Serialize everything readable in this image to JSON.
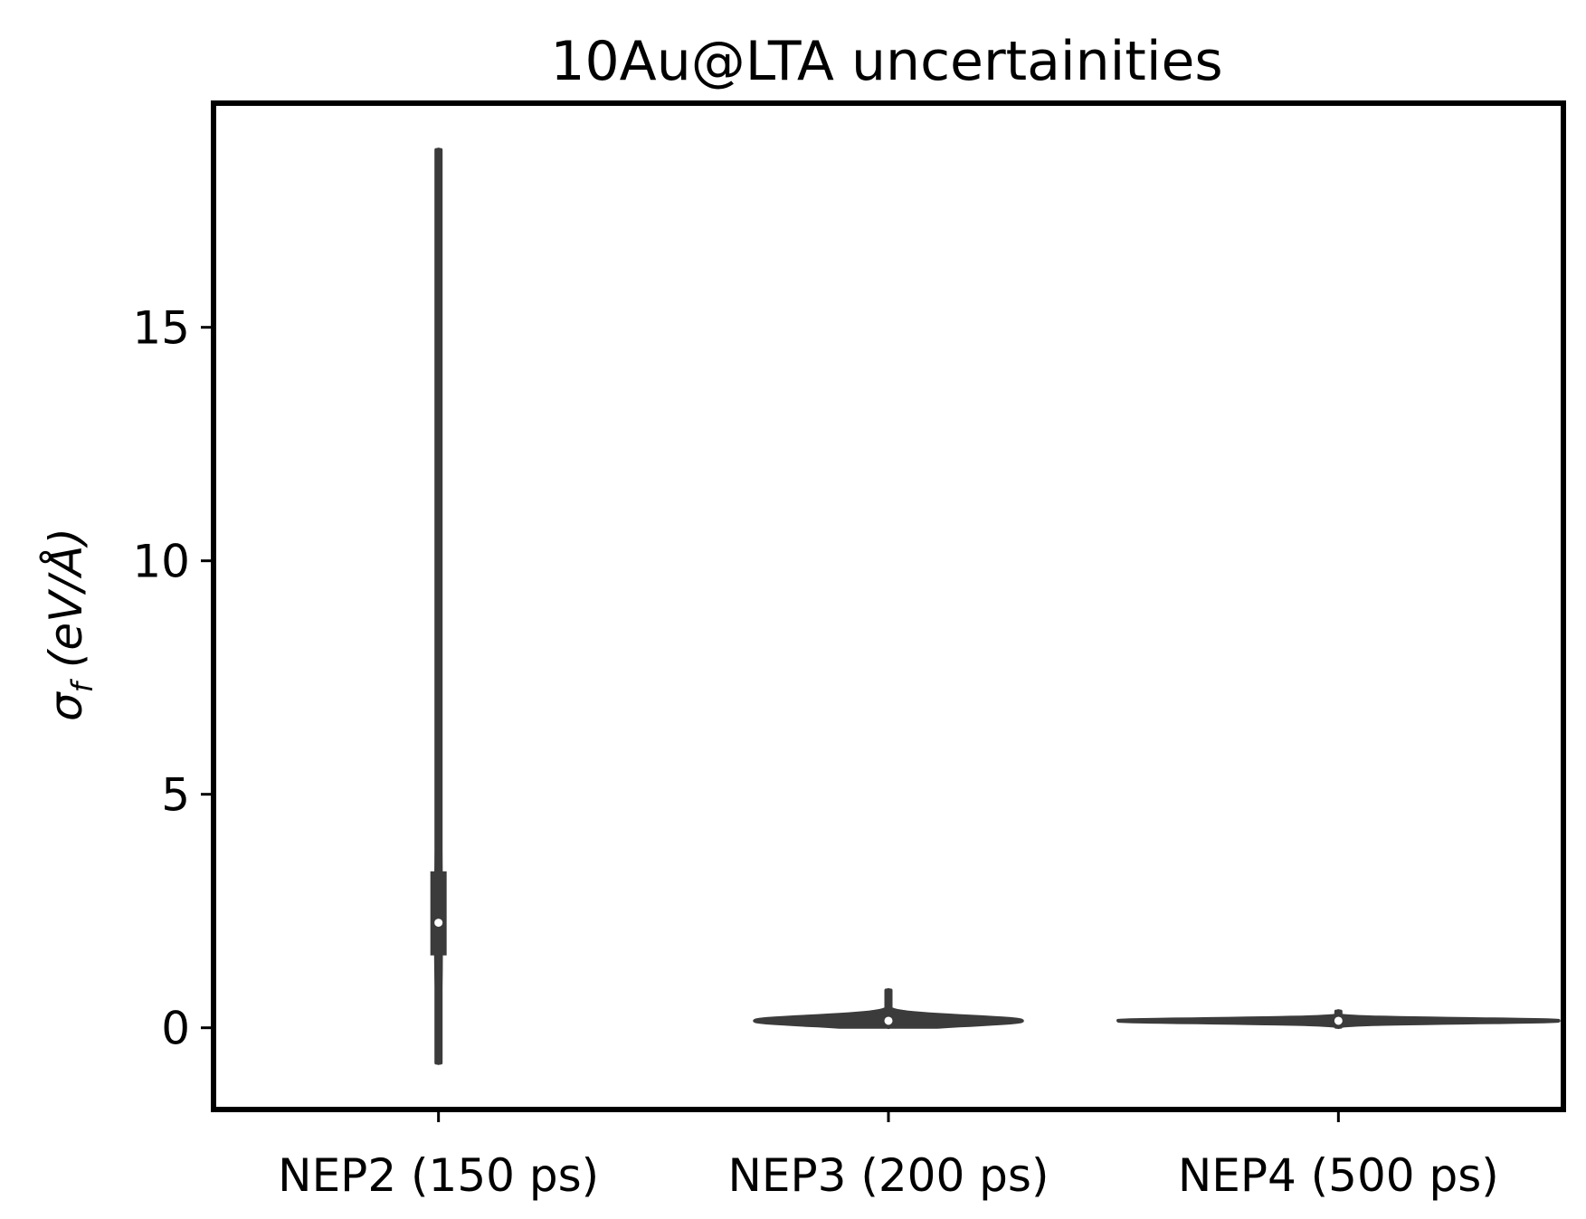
{
  "chart_data": {
    "type": "violin",
    "title": "10Au@LTA uncertainities",
    "xlabel": "",
    "ylabel": {
      "symbol": "σ",
      "subscript": "f",
      "units": "(eV/Å)"
    },
    "ylim": [
      -1.75,
      19.8
    ],
    "yticks": [
      0,
      5,
      10,
      15
    ],
    "grid": false,
    "categories": [
      "NEP2 (150 ps)",
      "NEP3 (200 ps)",
      "NEP4 (500 ps)"
    ],
    "violins": [
      {
        "category": "NEP2 (150 ps)",
        "min": -0.75,
        "max": 18.8,
        "q1": 1.55,
        "median": 2.25,
        "q3": 3.35,
        "relative_width": 0.02
      },
      {
        "category": "NEP3 (200 ps)",
        "min": 0.02,
        "max": 0.8,
        "q1": 0.05,
        "median": 0.15,
        "q3": 0.3,
        "relative_width": 1.0
      },
      {
        "category": "NEP4 (500 ps)",
        "min": 0.02,
        "max": 0.35,
        "q1": 0.05,
        "median": 0.15,
        "q3": 0.25,
        "relative_width": 1.65
      }
    ],
    "colors": {
      "violin_fill": "#3b3b3b",
      "violin_edge": "#3b3b3b",
      "median_marker": "#ffffff",
      "axes": "#000000"
    }
  }
}
